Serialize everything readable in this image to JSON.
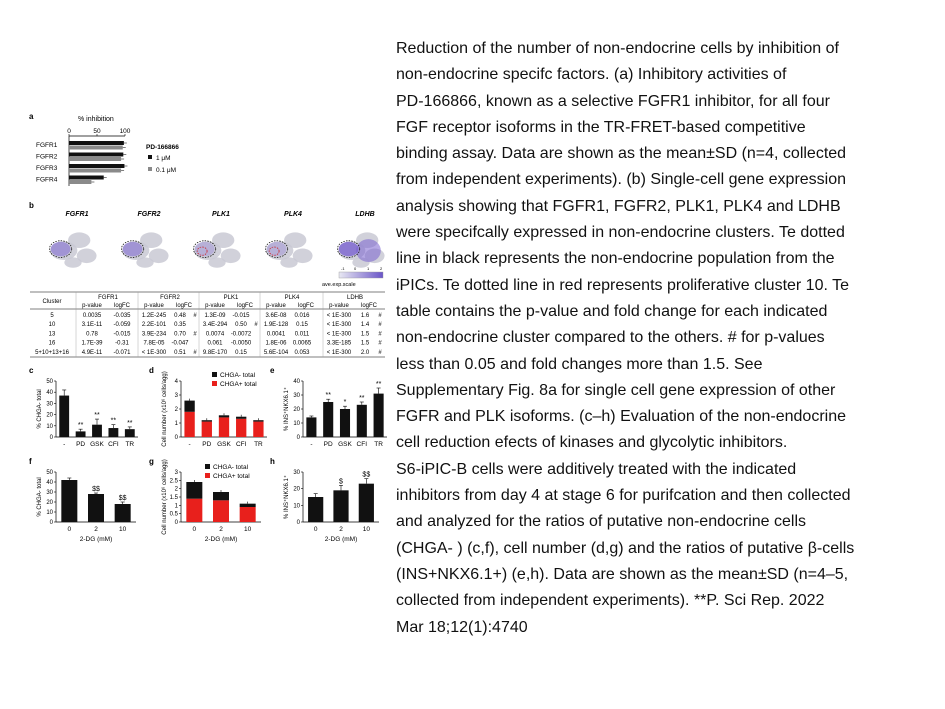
{
  "caption": {
    "lines": [
      "Reduction of the number of non-endocrine cells by inhibition of",
      "non-endocrine specifc factors. (a) Inhibitory activities of",
      "PD-166866, known as a selective FGFR1 inhibitor, for all four",
      "FGF receptor isoforms in the TR-FRET-based competitive",
      "binding assay. Data are shown as the mean±SD (n=4, collected",
      "from independent experiments). (b) Single-cell gene expression",
      "analysis showing that FGFR1, FGFR2, PLK1, PLK4 and LDHB",
      "were specifcally expressed in non-endocrine clusters. Te dotted",
      "line in black represents the non-endocrine population from the",
      "iPICs. Te dotted line in red represents proliferative cluster 10. Te",
      "table contains the p-value and fold change for each indicated",
      "non-endocrine cluster compared to the others. # for p-values",
      "less than 0.05 and fold changes more than 1.5. See",
      "Supplementary Fig. 8a for single cell gene expression of other",
      "FGFR and PLK isoforms. (c–h) Evaluation of the non-endocrine",
      "cell reduction efects of kinases and glycolytic inhibitors.",
      "S6-iPIC-B cells were additively treated with the indicated",
      "inhibitors from day 4 at stage 6 for purifcation and then collected",
      "and analyzed for the ratios of putative non-endocrine cells",
      "(CHGA- ) (c,f), cell number (d,g) and the ratios of putative β-cells",
      "(INS+NKX6.1+) (e,h). Data are shown as the mean±SD (n=4–5,",
      "collected from independent experiments). **P. Sci Rep. 2022",
      "Mar 18;12(1):4740"
    ]
  },
  "panel_labels": {
    "a": "a",
    "b": "b",
    "c": "c",
    "d": "d",
    "e": "e",
    "f": "f",
    "g": "g",
    "h": "h"
  },
  "panel_a": {
    "axis_title": "% inhibition",
    "ticks": [
      "0",
      "50",
      "100"
    ],
    "legend_title": "PD-166866",
    "legend_high": "1 μM",
    "legend_low": "0.1 μM",
    "colors": {
      "high": "#111111",
      "low": "#8a8a8a"
    }
  },
  "chart_data": [
    {
      "panel": "a",
      "type": "bar",
      "orientation": "horizontal",
      "categories": [
        "FGFR1",
        "FGFR2",
        "FGFR3",
        "FGFR4"
      ],
      "series": [
        {
          "name": "1 μM",
          "values": [
            98,
            97,
            99,
            62
          ]
        },
        {
          "name": "0.1 μM",
          "values": [
            96,
            93,
            93,
            40
          ]
        }
      ],
      "xlabel": "% inhibition",
      "xlim": [
        0,
        100
      ]
    },
    {
      "panel": "c",
      "type": "bar",
      "categories": [
        "-",
        "PD",
        "GSK",
        "CFI",
        "TR"
      ],
      "values": [
        37,
        5,
        11,
        8,
        7
      ],
      "errors": [
        5,
        2,
        5,
        3,
        2
      ],
      "annotations": [
        "",
        "**",
        "**",
        "**",
        "**"
      ],
      "ylabel": "% CHGA- total",
      "ylim": [
        0,
        50
      ],
      "yticks": [
        "0",
        "10",
        "20",
        "30",
        "40",
        "50"
      ]
    },
    {
      "panel": "d",
      "type": "bar",
      "stacked": true,
      "categories": [
        "-",
        "PD",
        "GSK",
        "CFI",
        "TR"
      ],
      "series": [
        {
          "name": "CHGA- total",
          "values": [
            0.8,
            0.1,
            0.15,
            0.15,
            0.1
          ]
        },
        {
          "name": "CHGA+ total",
          "values": [
            1.8,
            1.1,
            1.4,
            1.3,
            1.1
          ]
        }
      ],
      "ylabel": "Cell number (x10⁶ cells/agg)",
      "ylim": [
        0,
        4
      ],
      "yticks": [
        "0",
        "1",
        "2",
        "3",
        "4"
      ]
    },
    {
      "panel": "e",
      "type": "bar",
      "categories": [
        "-",
        "PD",
        "GSK",
        "CFI",
        "TR"
      ],
      "values": [
        14,
        25,
        20,
        23,
        31
      ],
      "errors": [
        1,
        2,
        2,
        2,
        4
      ],
      "annotations": [
        "",
        "**",
        "*",
        "**",
        "**"
      ],
      "ylabel": "% INS⁺NKX6.1⁺",
      "ylim": [
        0,
        40
      ],
      "yticks": [
        "0",
        "10",
        "20",
        "30",
        "40"
      ]
    },
    {
      "panel": "f",
      "type": "bar",
      "categories": [
        "0",
        "2",
        "10"
      ],
      "values": [
        42,
        28,
        18
      ],
      "errors": [
        2,
        1,
        2
      ],
      "annotations": [
        "",
        "$$",
        "$$"
      ],
      "xlabel": "2-DG (mM)",
      "ylabel": "% CHGA- total",
      "ylim": [
        0,
        50
      ],
      "yticks": [
        "0",
        "10",
        "20",
        "30",
        "40",
        "50"
      ]
    },
    {
      "panel": "g",
      "type": "bar",
      "stacked": true,
      "categories": [
        "0",
        "2",
        "10"
      ],
      "series": [
        {
          "name": "CHGA- total",
          "values": [
            1.0,
            0.5,
            0.2
          ]
        },
        {
          "name": "CHGA+ total",
          "values": [
            1.4,
            1.3,
            0.9
          ]
        }
      ],
      "xlabel": "2-DG (mM)",
      "ylabel": "Cell number (x10⁶ cells/agg)",
      "ylim": [
        0,
        3
      ],
      "yticks": [
        "0",
        "0.5",
        "1",
        "1.5",
        "2",
        "2.5",
        "3"
      ]
    },
    {
      "panel": "h",
      "type": "bar",
      "categories": [
        "0",
        "2",
        "10"
      ],
      "values": [
        15,
        19,
        23
      ],
      "errors": [
        2,
        3,
        3
      ],
      "annotations": [
        "",
        "$",
        "$$"
      ],
      "xlabel": "2-DG (mM)",
      "ylabel": "% INS⁺NKX6.1⁺",
      "ylim": [
        0,
        30
      ],
      "yticks": [
        "0",
        "10",
        "20",
        "30"
      ]
    }
  ],
  "panel_b": {
    "genes": [
      "FGFR1",
      "FGFR2",
      "PLK1",
      "PLK4",
      "LDHB"
    ],
    "scale_label": "ave.exp.scale",
    "scale_ticks": [
      "-1",
      "0",
      "1",
      "2"
    ]
  },
  "table": {
    "header_cluster": "Cluster",
    "genes": [
      "FGFR1",
      "FGFR2",
      "PLK1",
      "PLK4",
      "LDHB"
    ],
    "subheaders": [
      "p-value",
      "logFC"
    ],
    "rows": [
      [
        "5",
        "0.0035",
        "-0.035",
        "1.2E-245",
        "0.48",
        "#",
        "1.3E-09",
        "-0.015",
        "",
        "3.6E-08",
        "0.016",
        "",
        "< 1E-300",
        "1.6",
        "#"
      ],
      [
        "10",
        "3.1E-11",
        "-0.059",
        "2.2E-101",
        "0.35",
        "",
        "3.4E-294",
        "0.50",
        "#",
        "1.9E-128",
        "0.15",
        "",
        "< 1E-300",
        "1.4",
        "#"
      ],
      [
        "13",
        "0.78",
        "-0.015",
        "3.9E-234",
        "0.70",
        "#",
        "0.0074",
        "-0.0072",
        "",
        "0.0041",
        "0.011",
        "",
        "< 1E-300",
        "1.5",
        "#"
      ],
      [
        "16",
        "1.7E-39",
        "-0.31",
        "7.8E-05",
        "-0.047",
        "",
        "0.061",
        "-0.0050",
        "",
        "1.8E-06",
        "0.0065",
        "",
        "3.3E-185",
        "1.5",
        "#"
      ],
      [
        "5+10+13+16",
        "4.9E-11",
        "-0.071",
        "< 1E-300",
        "0.51",
        "#",
        "9.8E-170",
        "0.15",
        "",
        "5.6E-104",
        "0.053",
        "",
        "< 1E-300",
        "2.0",
        "#"
      ]
    ]
  },
  "legends": {
    "minus": "CHGA- total",
    "plus": "CHGA+ total"
  }
}
